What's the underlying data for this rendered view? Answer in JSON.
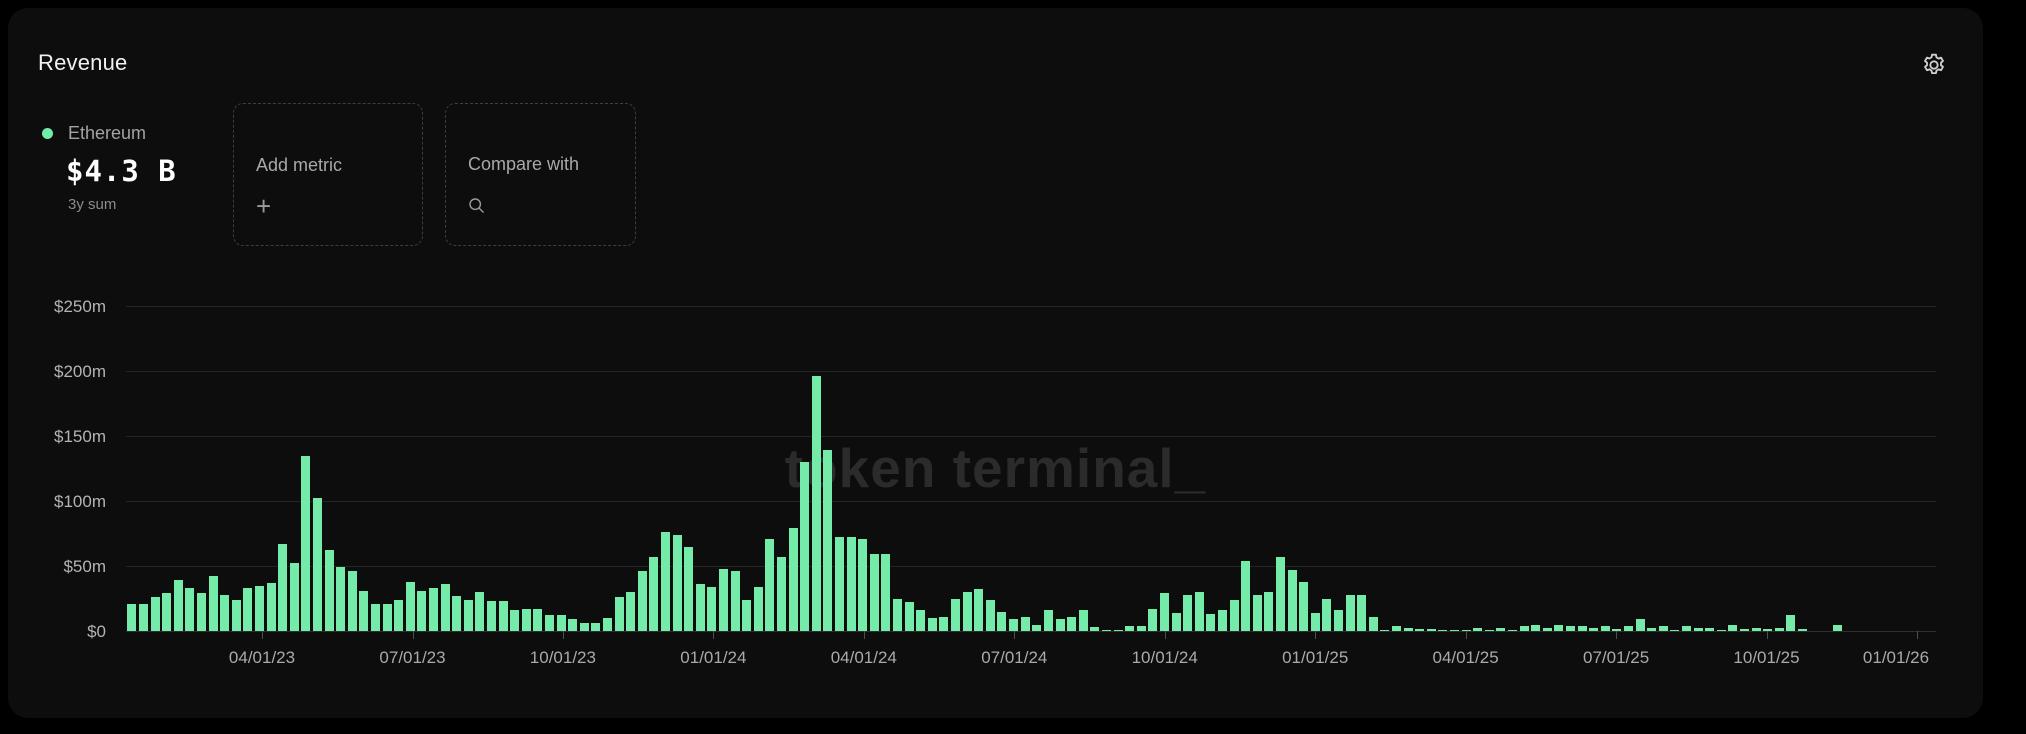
{
  "header": {
    "title": "Revenue"
  },
  "legend": {
    "series_name": "Ethereum",
    "value": "$4.3 B",
    "period_label": "3y sum",
    "dot_color": "#74ebа9"
  },
  "actions": {
    "add_metric_label": "Add metric",
    "add_metric_icon": "+",
    "compare_with_label": "Compare with",
    "compare_with_icon": "search"
  },
  "watermark": "token terminal_",
  "colors": {
    "bar_green": "#74eba9",
    "legend_dot_green": "#74eba9",
    "card_background": "#0c0d0c",
    "page_background": "#000000",
    "gridline": "#232423",
    "axis_text": "#aaabaa"
  },
  "chart_data": {
    "type": "bar",
    "title": "Revenue",
    "series_name": "Ethereum",
    "unit": "USD millions per week",
    "frequency": "weekly",
    "ylim": [
      0,
      250
    ],
    "grid": "horizontal",
    "legend_position": "top-left",
    "y_tick_labels_top_to_bottom": [
      "$250m",
      "$200m",
      "$150m",
      "$100m",
      "$50m",
      "$0"
    ],
    "y_tick_values_top_to_bottom": [
      250,
      200,
      150,
      100,
      50,
      0
    ],
    "x_tick_labels": [
      "04/01/23",
      "07/01/23",
      "10/01/23",
      "01/01/24",
      "04/01/24",
      "07/01/24",
      "10/01/24",
      "01/01/25",
      "04/01/25",
      "07/01/25",
      "10/01/25",
      "01/01/26"
    ],
    "x_domain_weeks": 156,
    "x_domain_note": "weekly bars from mid-Jan 2023; data ends late Nov 2025",
    "values": [
      21,
      21,
      26,
      29,
      39,
      33,
      29,
      42,
      28,
      24,
      33,
      35,
      37,
      67,
      52,
      135,
      102,
      62,
      49,
      46,
      31,
      21,
      21,
      24,
      38,
      31,
      33,
      36,
      27,
      24,
      30,
      23,
      23,
      16,
      17,
      17,
      12,
      12,
      9,
      6,
      6,
      10,
      26,
      30,
      46,
      57,
      76,
      74,
      65,
      36,
      34,
      48,
      46,
      24,
      34,
      71,
      57,
      79,
      130,
      196,
      139,
      72,
      72,
      71,
      59,
      59,
      25,
      22,
      16,
      10,
      11,
      25,
      30,
      32,
      24,
      15,
      9,
      11,
      5,
      16,
      9,
      11,
      16,
      3,
      1,
      1,
      4,
      4,
      17,
      29,
      14,
      28,
      30,
      13,
      16,
      24,
      54,
      28,
      30,
      57,
      47,
      38,
      14,
      25,
      16,
      28,
      28,
      11,
      1,
      4,
      2,
      1.5,
      1.5,
      0.5,
      0.5,
      0.5,
      2,
      0.5,
      2,
      0.5,
      4,
      5,
      2.5,
      4.5,
      3.5,
      3.5,
      2,
      4,
      1.5,
      3.5,
      9,
      2.5,
      3.5,
      1,
      3.5,
      2.5,
      2,
      1,
      4.5,
      1.5,
      2.5,
      1.5,
      2.5,
      12,
      1.5,
      0,
      0,
      5
    ]
  }
}
